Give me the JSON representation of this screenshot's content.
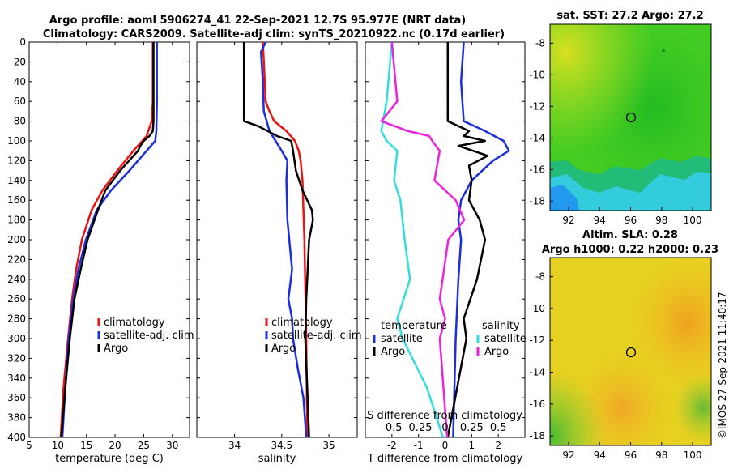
{
  "title_line1": "Argo profile: aoml 5906274_41 22-Sep-2021 12.7S 95.977E (NRT data)",
  "title_line2": "Climatology: CARS2009. Satellite-adj clim: synTS_20210922.nc (0.17d earlier)",
  "sst_title": "sat. SST: 27.2 Argo: 27.2",
  "sla_title1": "Altim. SLA: 0.28",
  "sla_title2": "Argo h1000: 0.22 h2000: 0.23",
  "watermark": "©IMOS 27-Sep-2021 11:40:17",
  "colors": {
    "red": "#ee1111",
    "blue": "#1a2ee0",
    "black": "#000000",
    "cyan": "#33dddd",
    "magenta": "#ee22dd"
  },
  "chart_data": [
    {
      "type": "line",
      "id": "temperature",
      "xlabel": "temperature (deg C)",
      "xlim": [
        5,
        33
      ],
      "xticks": [
        5,
        10,
        15,
        20,
        25,
        30
      ],
      "ylim": [
        0,
        400
      ],
      "yticks": [
        0,
        20,
        40,
        60,
        80,
        100,
        120,
        140,
        160,
        180,
        200,
        220,
        240,
        260,
        280,
        300,
        320,
        340,
        360,
        380,
        400
      ],
      "legend": [
        "climatology",
        "satellite-adj. clim",
        "Argo"
      ],
      "series": [
        {
          "name": "climatology",
          "color": "red",
          "depth": [
            0,
            60,
            80,
            95,
            110,
            130,
            150,
            170,
            200,
            230,
            260,
            300,
            350,
            400
          ],
          "values": [
            26.6,
            26.6,
            26.4,
            25.5,
            23.2,
            20.4,
            17.8,
            15.9,
            14.2,
            13.2,
            12.5,
            11.8,
            11.0,
            10.5
          ]
        },
        {
          "name": "satellite-adj. clim",
          "color": "blue",
          "depth": [
            0,
            60,
            90,
            100,
            110,
            130,
            150,
            170,
            200,
            230,
            260,
            300,
            350,
            400
          ],
          "values": [
            27.3,
            27.3,
            27.2,
            27.0,
            25.5,
            22.5,
            19.3,
            16.8,
            14.9,
            13.6,
            12.7,
            11.9,
            11.3,
            10.8
          ]
        },
        {
          "name": "Argo",
          "color": "black",
          "depth": [
            0,
            80,
            90,
            95,
            100,
            105,
            110,
            130,
            150,
            170,
            200,
            230,
            260,
            300,
            350,
            400
          ],
          "values": [
            26.7,
            26.7,
            26.6,
            26.0,
            25.0,
            24.4,
            24.0,
            20.9,
            18.3,
            17.0,
            15.2,
            14.0,
            12.9,
            12.1,
            11.3,
            10.6
          ]
        }
      ]
    },
    {
      "type": "line",
      "id": "salinity",
      "xlabel": "salinity",
      "xlim": [
        33.6,
        35.3
      ],
      "xticks": [
        34,
        34.5,
        35
      ],
      "legend": [
        "climatology",
        "satellite-adj. clim",
        "Argo"
      ],
      "series": [
        {
          "name": "climatology",
          "color": "red",
          "depth": [
            0,
            20,
            40,
            60,
            70,
            80,
            90,
            100,
            110,
            120,
            140,
            200,
            300,
            400
          ],
          "values": [
            34.3,
            34.31,
            34.32,
            34.33,
            34.37,
            34.42,
            34.55,
            34.64,
            34.68,
            34.7,
            34.72,
            34.74,
            34.76,
            34.77
          ]
        },
        {
          "name": "satellite-adj. clim",
          "color": "blue",
          "depth": [
            0,
            10,
            40,
            70,
            90,
            110,
            120,
            140,
            180,
            230,
            260,
            280,
            300,
            330,
            360,
            400
          ],
          "values": [
            34.33,
            34.28,
            34.3,
            34.31,
            34.37,
            34.5,
            34.56,
            34.55,
            34.56,
            34.61,
            34.57,
            34.61,
            34.62,
            34.67,
            34.73,
            34.76
          ]
        },
        {
          "name": "Argo",
          "color": "black",
          "depth": [
            0,
            40,
            80,
            85,
            90,
            95,
            100,
            110,
            130,
            150,
            170,
            180,
            200,
            220,
            240,
            260,
            300,
            350,
            400
          ],
          "values": [
            34.1,
            34.1,
            34.1,
            34.25,
            34.35,
            34.45,
            34.6,
            34.62,
            34.65,
            34.72,
            34.82,
            34.83,
            34.79,
            34.78,
            34.77,
            34.76,
            34.75,
            34.77,
            34.79
          ]
        }
      ]
    },
    {
      "type": "line",
      "id": "difference",
      "xlabel": "T difference from climatology",
      "xlim": [
        -3,
        3
      ],
      "xticks": [
        -2,
        -1,
        0,
        1,
        2
      ],
      "top_xlabel": "S difference from climatology",
      "top_xticks": [
        "-0.5",
        "-0.25",
        "0",
        "0.25",
        "0.5"
      ],
      "legend_left_title": "temperature",
      "legend_right_title": "salinity",
      "legend": [
        "satellite",
        "Argo",
        "satellite",
        "Argo"
      ],
      "series": [
        {
          "name": "T satellite",
          "color": "blue",
          "depth": [
            0,
            40,
            80,
            90,
            100,
            110,
            120,
            140,
            160,
            180,
            200,
            240,
            300,
            400
          ],
          "values": [
            0.7,
            0.6,
            0.7,
            1.5,
            2.2,
            2.4,
            1.8,
            1.0,
            0.6,
            0.5,
            0.6,
            0.5,
            0.4,
            0.3
          ]
        },
        {
          "name": "T Argo",
          "color": "black",
          "depth": [
            0,
            80,
            90,
            95,
            100,
            105,
            115,
            125,
            140,
            160,
            180,
            200,
            240,
            280,
            300,
            400
          ],
          "values": [
            0.1,
            0.1,
            0.9,
            0.7,
            1.5,
            0.5,
            1.6,
            0.9,
            1.0,
            0.9,
            1.3,
            1.5,
            1.2,
            0.7,
            0.8,
            0.1
          ]
        },
        {
          "name": "S satellite",
          "color": "cyan",
          "depth": [
            0,
            60,
            90,
            100,
            110,
            140,
            160,
            200,
            240,
            280,
            300,
            350,
            400
          ],
          "values": [
            -0.5,
            -0.55,
            -0.6,
            -0.55,
            -0.45,
            -0.48,
            -0.42,
            -0.38,
            -0.33,
            -0.45,
            -0.4,
            -0.17,
            -0.02
          ]
        },
        {
          "name": "S Argo",
          "color": "magenta",
          "depth": [
            0,
            60,
            80,
            90,
            95,
            100,
            110,
            140,
            150,
            160,
            180,
            200,
            260,
            280,
            300,
            400
          ],
          "values": [
            -0.5,
            -0.45,
            -0.6,
            -0.35,
            -0.15,
            -0.12,
            -0.05,
            -0.1,
            0.0,
            0.1,
            0.18,
            0.03,
            -0.05,
            0.0,
            -0.05,
            0.02
          ]
        }
      ]
    },
    {
      "type": "heatmap",
      "id": "sst_map",
      "xticks": [
        92,
        94,
        96,
        98,
        100
      ],
      "yticks": [
        -8,
        -10,
        -12,
        -14,
        -16,
        -18
      ],
      "xlim": [
        90.8,
        101.2
      ],
      "ylim": [
        -18.6,
        -6.8
      ],
      "float_position": [
        96.0,
        -12.7
      ]
    },
    {
      "type": "heatmap",
      "id": "sla_map",
      "xticks": [
        92,
        94,
        96,
        98,
        100
      ],
      "yticks": [
        -8,
        -10,
        -12,
        -14,
        -16,
        -18
      ],
      "xlim": [
        90.8,
        101.2
      ],
      "ylim": [
        -18.6,
        -6.8
      ],
      "float_position": [
        96.0,
        -12.7
      ]
    }
  ]
}
